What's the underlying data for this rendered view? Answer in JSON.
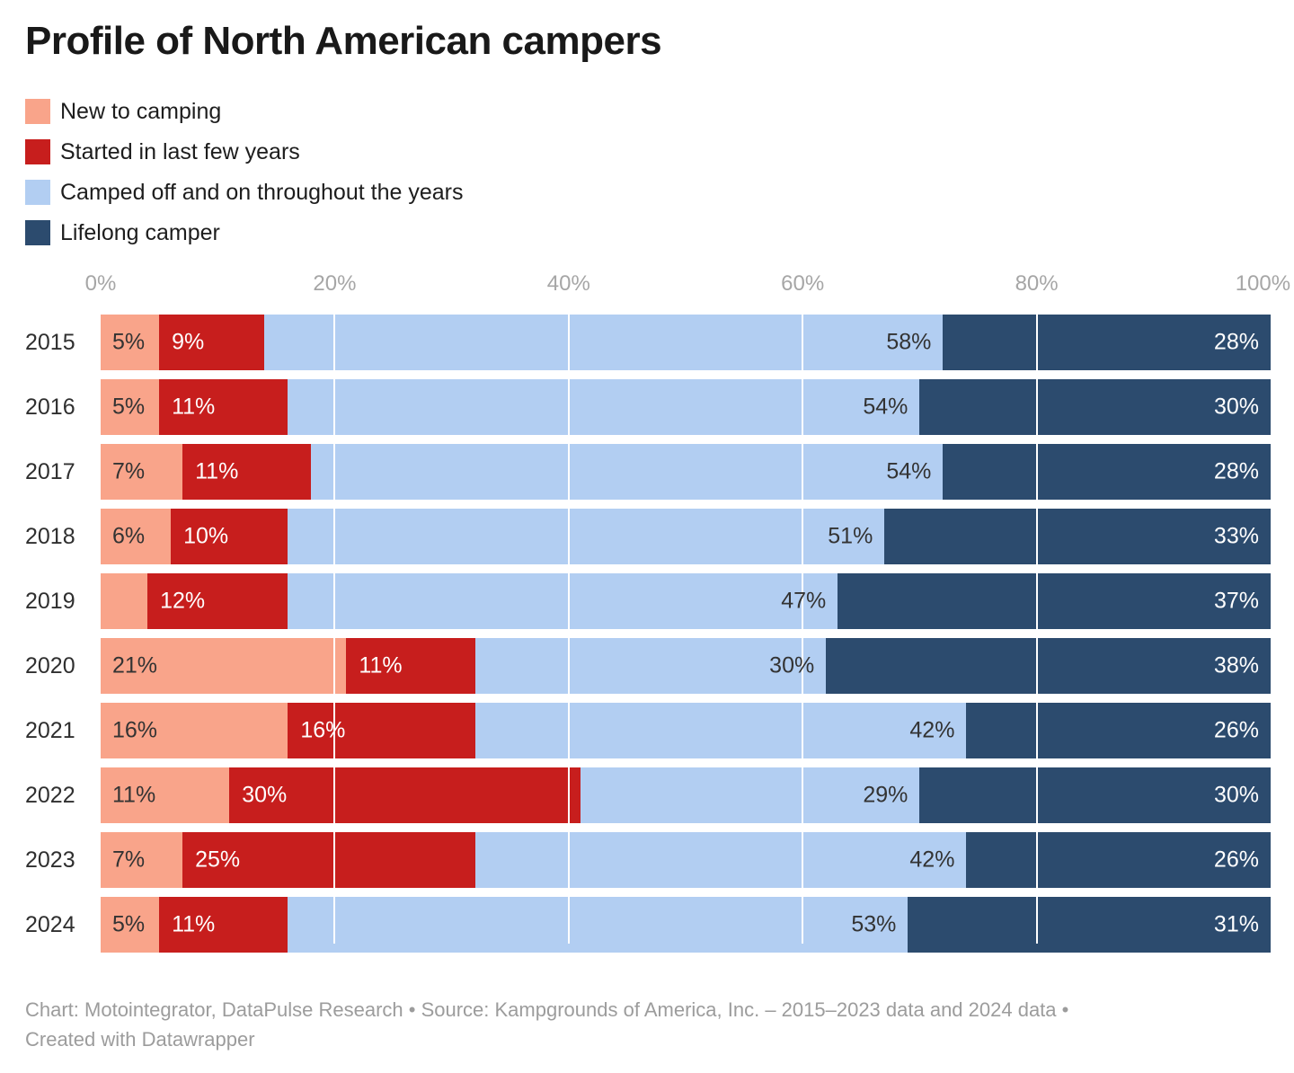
{
  "chart_data": {
    "type": "bar",
    "stacked": true,
    "orientation": "horizontal",
    "title": "Profile of North American campers",
    "xlabel": "",
    "ylabel": "",
    "xlim": [
      0,
      100
    ],
    "value_suffix": "%",
    "x_ticks": [
      "0%",
      "20%",
      "40%",
      "60%",
      "80%",
      "100%"
    ],
    "grid": "vertical",
    "gridline_color": "#ffffff",
    "gridline_positions": [
      20,
      40,
      60,
      80
    ],
    "legend_position": "top-left",
    "background_color": "#ffffff",
    "categories": [
      "2015",
      "2016",
      "2017",
      "2018",
      "2019",
      "2020",
      "2021",
      "2022",
      "2023",
      "2024"
    ],
    "series": [
      {
        "name": "New to camping",
        "color": "#F9A48A",
        "values": [
          5,
          5,
          7,
          6,
          4,
          21,
          16,
          11,
          7,
          5
        ],
        "labels": [
          "5%",
          "5%",
          "7%",
          "6%",
          "",
          "21%",
          "16%",
          "11%",
          "7%",
          "5%"
        ]
      },
      {
        "name": "Started in last few years",
        "color": "#C71E1D",
        "values": [
          9,
          11,
          11,
          10,
          12,
          11,
          16,
          30,
          25,
          11
        ],
        "labels": [
          "9%",
          "11%",
          "11%",
          "10%",
          "12%",
          "11%",
          "16%",
          "30%",
          "25%",
          "11%"
        ]
      },
      {
        "name": "Camped off and on throughout the years",
        "color": "#B2CEF2",
        "values": [
          58,
          54,
          54,
          51,
          47,
          30,
          42,
          29,
          42,
          53
        ],
        "labels": [
          "58%",
          "54%",
          "54%",
          "51%",
          "47%",
          "30%",
          "42%",
          "29%",
          "42%",
          "53%"
        ]
      },
      {
        "name": "Lifelong camper",
        "color": "#2C4B6E",
        "values": [
          28,
          30,
          28,
          33,
          37,
          38,
          26,
          30,
          26,
          31
        ],
        "labels": [
          "28%",
          "30%",
          "28%",
          "33%",
          "37%",
          "38%",
          "26%",
          "30%",
          "26%",
          "31%"
        ]
      }
    ]
  },
  "footer": {
    "line1": "Chart: Motointegrator, DataPulse Research • Source: Kampgrounds of America, Inc. – 2015–2023 data and 2024 data •",
    "line2": "Created with Datawrapper"
  }
}
